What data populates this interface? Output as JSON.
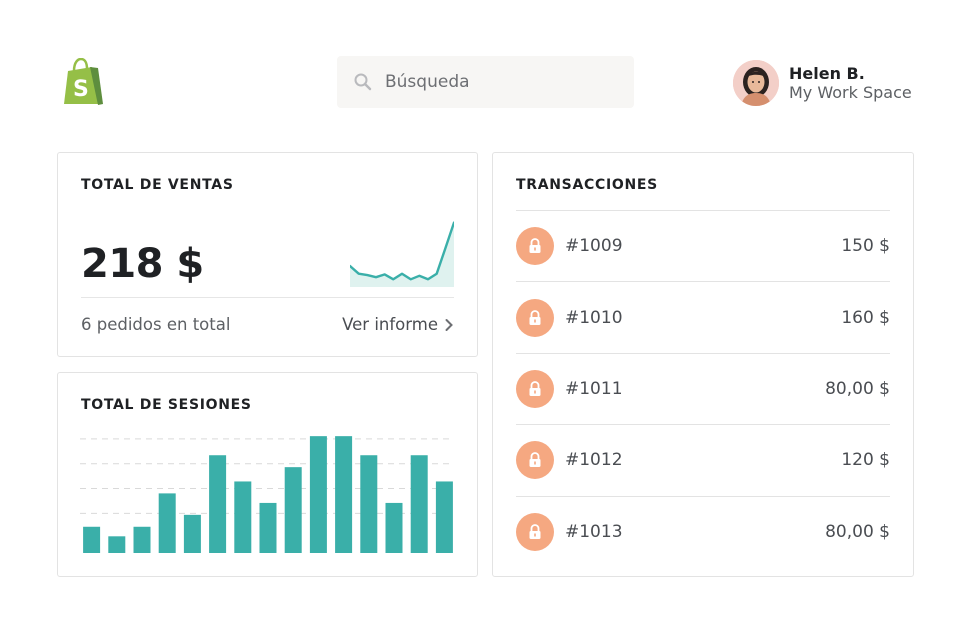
{
  "colors": {
    "brand_green": "#95bf47",
    "brand_dark_green": "#5e8e3e",
    "teal": "#3aafa9",
    "teal_fill": "#dff2ef",
    "lock_orange": "#f5a881"
  },
  "header": {
    "logo_icon": "shopify-bag-icon",
    "search": {
      "placeholder": "Búsqueda",
      "icon": "search-icon"
    },
    "user": {
      "name": "Helen B.",
      "workspace": "My Work Space"
    }
  },
  "sales": {
    "title": "TOTAL DE VENTAS",
    "amount": "218 $",
    "orders": "6 pedidos en total",
    "link": "Ver informe"
  },
  "sessions": {
    "title": "TOTAL DE SESIONES"
  },
  "transactions": {
    "title": "TRANSACCIONES",
    "items": [
      {
        "id": "#1009",
        "amount": "150 $"
      },
      {
        "id": "#1010",
        "amount": "160 $"
      },
      {
        "id": "#1011",
        "amount": "80,00 $"
      },
      {
        "id": "#1012",
        "amount": "120 $"
      },
      {
        "id": "#1013",
        "amount": "80,00 $"
      }
    ]
  },
  "chart_data": [
    {
      "type": "line",
      "title": "",
      "values": [
        30,
        19,
        17,
        14,
        18,
        11,
        19,
        11,
        16,
        11,
        19,
        55,
        92
      ]
    },
    {
      "type": "bar",
      "title": "TOTAL DE SESIONES",
      "values": [
        11,
        7,
        11,
        25,
        16,
        41,
        30,
        21,
        36,
        49,
        49,
        41,
        21,
        41,
        30
      ],
      "ylim": [
        0,
        52
      ],
      "grid": true
    }
  ]
}
